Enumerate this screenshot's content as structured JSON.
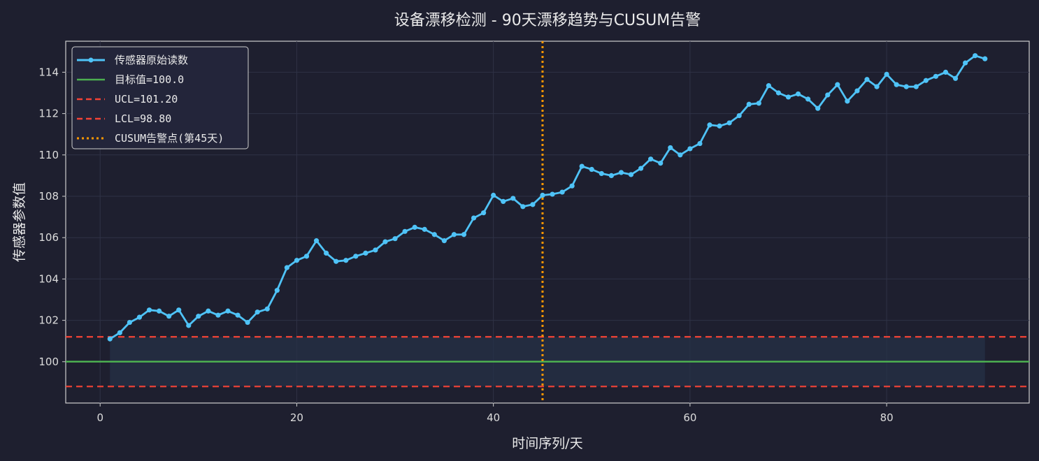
{
  "chart_data": {
    "type": "line",
    "title": "设备漂移检测 - 90天漂移趋势与CUSUM告警",
    "xlabel": "时间序列/天",
    "ylabel": "传感器参数值",
    "xlim": [
      -3.5,
      94.5
    ],
    "ylim": [
      98.0,
      115.5
    ],
    "xticks": [
      0,
      20,
      40,
      60,
      80
    ],
    "yticks": [
      100,
      102,
      104,
      106,
      108,
      110,
      112,
      114
    ],
    "grid": true,
    "legend_position": "top-left",
    "target": 100.0,
    "ucl": 101.2,
    "lcl": 98.8,
    "alarm_day": 45,
    "colors": {
      "background": "#1e1f2f",
      "series": "#4fc3f7",
      "target": "#4caf50",
      "limits": "#f44336",
      "alarm": "#ff9800",
      "band": "#263247"
    },
    "legend": [
      "传感器原始读数",
      "目标值=100.0",
      "UCL=101.20",
      "LCL=98.80",
      "CUSUM告警点(第45天)"
    ],
    "series": [
      {
        "name": "传感器原始读数",
        "x": [
          1,
          2,
          3,
          4,
          5,
          6,
          7,
          8,
          9,
          10,
          11,
          12,
          13,
          14,
          15,
          16,
          17,
          18,
          19,
          20,
          21,
          22,
          23,
          24,
          25,
          26,
          27,
          28,
          29,
          30,
          31,
          32,
          33,
          34,
          35,
          36,
          37,
          38,
          39,
          40,
          41,
          42,
          43,
          44,
          45,
          46,
          47,
          48,
          49,
          50,
          51,
          52,
          53,
          54,
          55,
          56,
          57,
          58,
          59,
          60,
          61,
          62,
          63,
          64,
          65,
          66,
          67,
          68,
          69,
          70,
          71,
          72,
          73,
          74,
          75,
          76,
          77,
          78,
          79,
          80,
          81,
          82,
          83,
          84,
          85,
          86,
          87,
          88,
          89,
          90
        ],
        "values": [
          101.1,
          101.4,
          101.9,
          102.15,
          102.5,
          102.45,
          102.2,
          102.5,
          101.75,
          102.2,
          102.45,
          102.25,
          102.45,
          102.25,
          101.9,
          102.4,
          102.55,
          103.45,
          104.55,
          104.9,
          105.1,
          105.85,
          105.25,
          104.85,
          104.9,
          105.1,
          105.25,
          105.4,
          105.8,
          105.95,
          106.3,
          106.5,
          106.4,
          106.15,
          105.85,
          106.15,
          106.15,
          106.95,
          107.2,
          108.05,
          107.75,
          107.9,
          107.5,
          107.6,
          108.05,
          108.1,
          108.2,
          108.5,
          109.45,
          109.3,
          109.1,
          109.0,
          109.15,
          109.05,
          109.35,
          109.8,
          109.6,
          110.35,
          110.0,
          110.3,
          110.55,
          111.45,
          111.4,
          111.55,
          111.9,
          112.45,
          112.5,
          113.35,
          113.0,
          112.8,
          112.95,
          112.7,
          112.25,
          112.9,
          113.4,
          112.6,
          113.1,
          113.65,
          113.3,
          113.9,
          113.4,
          113.3,
          113.3,
          113.6,
          113.8,
          114.0,
          113.7,
          114.45,
          114.8,
          114.65
        ]
      }
    ]
  }
}
